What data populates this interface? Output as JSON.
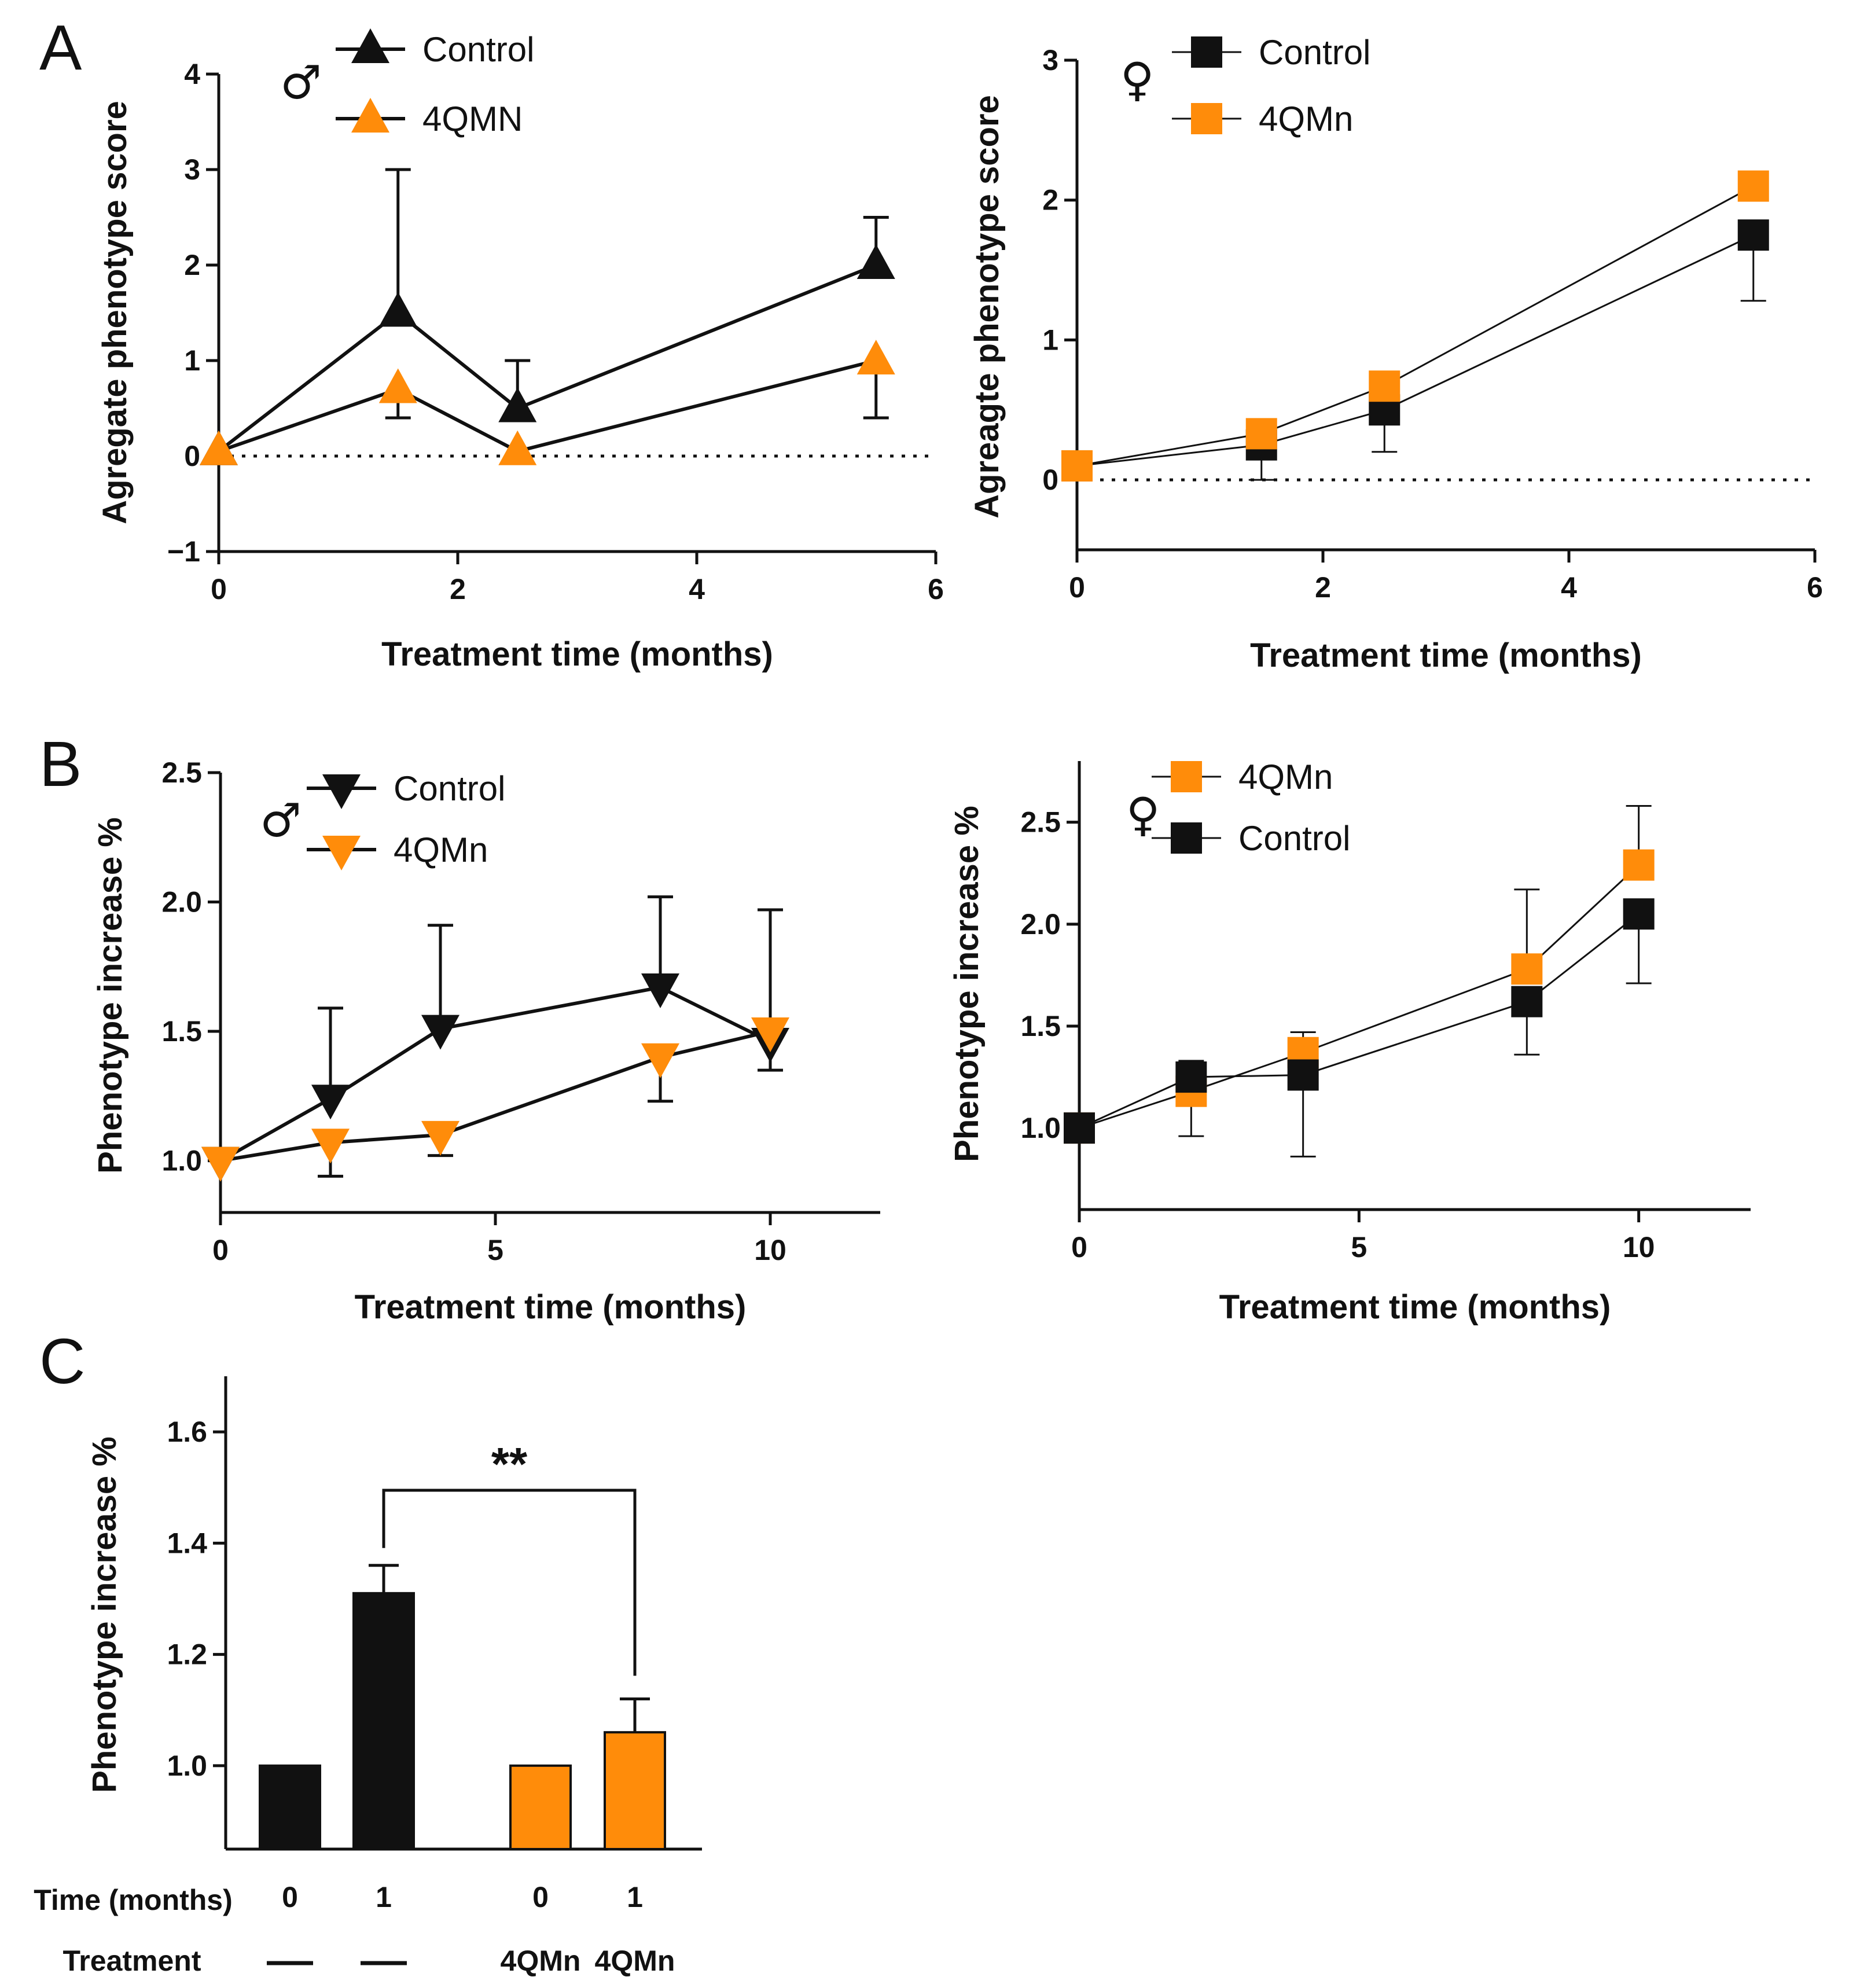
{
  "colors": {
    "control": "#111111",
    "treated": "#ff8c0a",
    "axis": "#111111"
  },
  "panel_labels": {
    "A": "A",
    "B": "B",
    "C": "C"
  },
  "chart_data": [
    {
      "id": "A_male",
      "type": "line",
      "panel": "A",
      "sex_symbol": "♂",
      "xlabel": "Treatment time (months)",
      "ylabel": "Agregate phenotype score",
      "xlim": [
        0,
        6
      ],
      "ylim": [
        -1,
        4
      ],
      "xticks": [
        0,
        2,
        4,
        6
      ],
      "yticks": [
        -1,
        0,
        1,
        2,
        3,
        4
      ],
      "xtick_labels": [
        "0",
        "2",
        "4",
        "6"
      ],
      "ytick_labels": [
        "−1",
        "0",
        "1",
        "2",
        "3",
        "4"
      ],
      "zero_line": true,
      "series": [
        {
          "name": "Control",
          "marker": "triangle-up",
          "color": "#111111",
          "x": [
            0,
            1.5,
            2.5,
            5.5
          ],
          "y": [
            0.05,
            1.5,
            0.5,
            2.0
          ],
          "err_up": [
            0,
            1.5,
            0.5,
            0.5
          ],
          "err_down": [
            0,
            0,
            0,
            0
          ]
        },
        {
          "name": "4QMN",
          "marker": "triangle-up",
          "color": "#ff8c0a",
          "x": [
            0,
            1.5,
            2.5,
            5.5
          ],
          "y": [
            0.05,
            0.7,
            0.05,
            1.0
          ],
          "err_up": [
            0,
            0,
            0,
            0
          ],
          "err_down": [
            0,
            0.3,
            0,
            0.6
          ]
        }
      ]
    },
    {
      "id": "A_female",
      "type": "line",
      "panel": "A",
      "sex_symbol": "♀",
      "xlabel": "Treatment time (months)",
      "ylabel": "Agreagte phenotype score",
      "xlim": [
        0,
        6
      ],
      "ylim": [
        -0.5,
        3
      ],
      "xticks": [
        0,
        2,
        4,
        6
      ],
      "yticks": [
        0,
        1,
        2,
        3
      ],
      "xtick_labels": [
        "0",
        "2",
        "4",
        "6"
      ],
      "ytick_labels": [
        "0",
        "1",
        "2",
        "3"
      ],
      "zero_line": true,
      "series": [
        {
          "name": "Control",
          "marker": "square",
          "color": "#111111",
          "x": [
            0,
            1.5,
            2.5,
            5.5
          ],
          "y": [
            0.1,
            0.25,
            0.5,
            1.75
          ],
          "err_up": [
            0,
            0,
            0,
            0
          ],
          "err_down": [
            0,
            0.25,
            0.3,
            0.47
          ]
        },
        {
          "name": "4QMn",
          "marker": "square",
          "color": "#ff8c0a",
          "x": [
            0,
            1.5,
            2.5,
            5.5
          ],
          "y": [
            0.1,
            0.33,
            0.67,
            2.1
          ],
          "err_up": [
            0,
            0,
            0,
            0
          ],
          "err_down": [
            0,
            0,
            0,
            0
          ]
        }
      ]
    },
    {
      "id": "B_male",
      "type": "line",
      "panel": "B",
      "sex_symbol": "♂",
      "xlabel": "Treatment time (months)",
      "ylabel": "Phenotype increase %",
      "xlim": [
        0,
        12
      ],
      "ylim": [
        0.8,
        2.5
      ],
      "xticks": [
        0,
        5,
        10
      ],
      "yticks": [
        1.0,
        1.5,
        2.0,
        2.5
      ],
      "xtick_labels": [
        "0",
        "5",
        "10"
      ],
      "ytick_labels": [
        "1.0",
        "1.5",
        "2.0",
        "2.5"
      ],
      "zero_line": false,
      "series": [
        {
          "name": "Control",
          "marker": "triangle-down",
          "color": "#111111",
          "x": [
            0,
            2,
            4,
            8,
            10
          ],
          "y": [
            1.0,
            1.24,
            1.51,
            1.67,
            1.46
          ],
          "err_up": [
            0,
            0.35,
            0.4,
            0.35,
            0.51
          ],
          "err_down": [
            0,
            0,
            0,
            0,
            0.11
          ]
        },
        {
          "name": "4QMn",
          "marker": "triangle-down",
          "color": "#ff8c0a",
          "x": [
            0,
            2,
            4,
            8,
            10
          ],
          "y": [
            1.0,
            1.07,
            1.1,
            1.4,
            1.5
          ],
          "err_up": [
            0,
            0,
            0,
            0,
            0
          ],
          "err_down": [
            0,
            0.13,
            0.08,
            0.17,
            0
          ]
        }
      ]
    },
    {
      "id": "B_female",
      "type": "line",
      "panel": "B",
      "sex_symbol": "♀",
      "xlabel": "Treatment time (months)",
      "ylabel": "Phenotype increase %",
      "xlim": [
        0,
        12
      ],
      "ylim": [
        0.6,
        2.8
      ],
      "xticks": [
        0,
        5,
        10
      ],
      "yticks": [
        1.0,
        1.5,
        2.0,
        2.5
      ],
      "xtick_labels": [
        "0",
        "5",
        "10"
      ],
      "ytick_labels": [
        "1.0",
        "1.5",
        "2.0",
        "2.5"
      ],
      "zero_line": false,
      "series": [
        {
          "name": "4QMn",
          "marker": "square",
          "color": "#ff8c0a",
          "x": [
            0,
            2,
            4,
            8,
            10
          ],
          "y": [
            1.0,
            1.18,
            1.37,
            1.78,
            2.29
          ],
          "err_up": [
            0,
            0,
            0.1,
            0.39,
            0.29
          ],
          "err_down": [
            0,
            0.22,
            0,
            0,
            0
          ]
        },
        {
          "name": "Control",
          "marker": "square",
          "color": "#111111",
          "x": [
            0,
            2,
            4,
            8,
            10
          ],
          "y": [
            1.0,
            1.25,
            1.26,
            1.62,
            2.05
          ],
          "err_up": [
            0,
            0.08,
            0,
            0,
            0
          ],
          "err_down": [
            0,
            0,
            0.4,
            0.26,
            0.34
          ]
        }
      ]
    },
    {
      "id": "C",
      "type": "bar",
      "panel": "C",
      "ylabel": "Phenotype increase %",
      "ylim": [
        0.85,
        1.7
      ],
      "yticks": [
        1.0,
        1.2,
        1.4,
        1.6
      ],
      "ytick_labels": [
        "1.0",
        "1.2",
        "1.4",
        "1.6"
      ],
      "bars": [
        {
          "time": "0",
          "treatment": "—",
          "value": 1.0,
          "err": 0,
          "color": "#111111"
        },
        {
          "time": "1",
          "treatment": "—",
          "value": 1.31,
          "err": 0.05,
          "color": "#111111"
        },
        {
          "time": "0",
          "treatment": "4QMn",
          "value": 1.0,
          "err": 0,
          "color": "#ff8c0a"
        },
        {
          "time": "1",
          "treatment": "4QMn",
          "value": 1.06,
          "err": 0.06,
          "color": "#ff8c0a"
        }
      ],
      "row_labels": {
        "time": "Time (months)",
        "treatment": "Treatment"
      },
      "significance": {
        "between": [
          1,
          3
        ],
        "label": "**"
      }
    }
  ]
}
